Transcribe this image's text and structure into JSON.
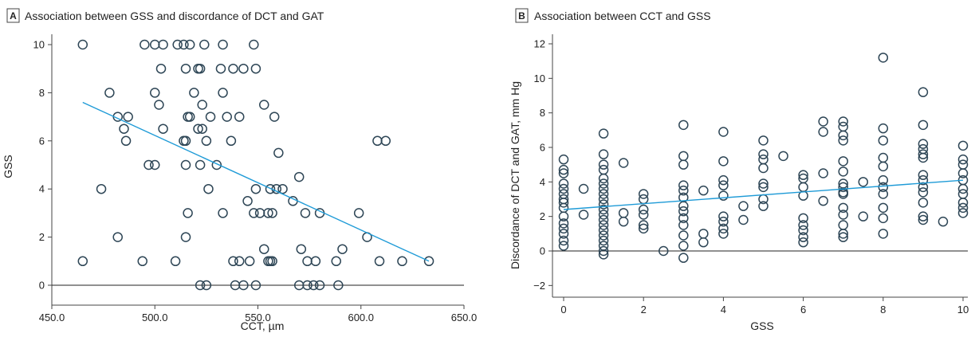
{
  "chart_data": [
    {
      "type": "scatter",
      "panel": "A",
      "title": "Association between GSS and discordance of DCT and GAT",
      "xlabel": "CCT, µm",
      "ylabel": "GSS",
      "xlim": [
        450,
        650
      ],
      "ylim": [
        0,
        10
      ],
      "xticks": [
        450,
        500,
        550,
        600,
        650
      ],
      "xtick_labels": [
        "450.0",
        "500.0",
        "550.0",
        "600.0",
        "650.0"
      ],
      "yticks": [
        0,
        2,
        4,
        6,
        8,
        10
      ],
      "ytick_labels": [
        "0",
        "2",
        "4",
        "6",
        "8",
        "10"
      ],
      "grid": false,
      "points": [
        [
          465,
          10
        ],
        [
          495,
          10
        ],
        [
          500,
          10
        ],
        [
          504,
          10
        ],
        [
          511,
          10
        ],
        [
          514,
          10
        ],
        [
          517,
          10
        ],
        [
          524,
          10
        ],
        [
          533,
          10
        ],
        [
          548,
          10
        ],
        [
          503,
          9
        ],
        [
          515,
          9
        ],
        [
          521,
          9
        ],
        [
          522,
          9
        ],
        [
          532,
          9
        ],
        [
          538,
          9
        ],
        [
          543,
          9
        ],
        [
          549,
          9
        ],
        [
          478,
          8
        ],
        [
          500,
          8
        ],
        [
          519,
          8
        ],
        [
          533,
          8
        ],
        [
          482,
          7
        ],
        [
          487,
          7
        ],
        [
          516,
          7
        ],
        [
          517,
          7
        ],
        [
          527,
          7
        ],
        [
          535,
          7
        ],
        [
          541,
          7
        ],
        [
          558,
          7
        ],
        [
          485,
          6.5
        ],
        [
          504,
          6.5
        ],
        [
          521,
          6.5
        ],
        [
          523,
          6.5
        ],
        [
          502,
          7.5
        ],
        [
          523,
          7.5
        ],
        [
          553,
          7.5
        ],
        [
          486,
          6
        ],
        [
          514,
          6
        ],
        [
          515,
          6
        ],
        [
          525,
          6
        ],
        [
          537,
          6
        ],
        [
          608,
          6
        ],
        [
          612,
          6
        ],
        [
          560,
          5.5
        ],
        [
          497,
          5
        ],
        [
          500,
          5
        ],
        [
          515,
          5
        ],
        [
          522,
          5
        ],
        [
          530,
          5
        ],
        [
          570,
          4.5
        ],
        [
          474,
          4
        ],
        [
          526,
          4
        ],
        [
          549,
          4
        ],
        [
          556,
          4
        ],
        [
          559,
          4
        ],
        [
          562,
          4
        ],
        [
          545,
          3.5
        ],
        [
          567,
          3.5
        ],
        [
          516,
          3
        ],
        [
          533,
          3
        ],
        [
          548,
          3
        ],
        [
          551,
          3
        ],
        [
          555,
          3
        ],
        [
          557,
          3
        ],
        [
          573,
          3
        ],
        [
          580,
          3
        ],
        [
          599,
          3
        ],
        [
          482,
          2
        ],
        [
          515,
          2
        ],
        [
          603,
          2
        ],
        [
          553,
          1.5
        ],
        [
          571,
          1.5
        ],
        [
          591,
          1.5
        ],
        [
          465,
          1
        ],
        [
          494,
          1
        ],
        [
          510,
          1
        ],
        [
          538,
          1
        ],
        [
          541,
          1
        ],
        [
          546,
          1
        ],
        [
          555,
          1
        ],
        [
          556,
          1
        ],
        [
          557,
          1
        ],
        [
          574,
          1
        ],
        [
          578,
          1
        ],
        [
          588,
          1
        ],
        [
          609,
          1
        ],
        [
          620,
          1
        ],
        [
          633,
          1
        ],
        [
          522,
          0
        ],
        [
          525,
          0
        ],
        [
          539,
          0
        ],
        [
          543,
          0
        ],
        [
          549,
          0
        ],
        [
          570,
          0
        ],
        [
          574,
          0
        ],
        [
          577,
          0
        ],
        [
          580,
          0
        ],
        [
          589,
          0
        ]
      ],
      "trendline": {
        "x": [
          465,
          633
        ],
        "y": [
          7.6,
          1.0
        ]
      }
    },
    {
      "type": "scatter",
      "panel": "B",
      "title": "Association between CCT and GSS",
      "xlabel": "GSS",
      "ylabel": "Discordance of DCT and GAT, mm Hg",
      "xlim": [
        -0.3,
        10
      ],
      "ylim": [
        -2.8,
        12
      ],
      "xticks": [
        0,
        2,
        4,
        6,
        8,
        10
      ],
      "xtick_labels": [
        "0",
        "2",
        "4",
        "6",
        "8",
        "10"
      ],
      "yticks": [
        -2,
        0,
        2,
        4,
        6,
        8,
        10,
        12
      ],
      "ytick_labels": [
        "−2",
        "0",
        "2",
        "4",
        "6",
        "8",
        "10",
        "12"
      ],
      "grid": false,
      "points": [
        [
          0,
          5.3
        ],
        [
          0,
          4.7
        ],
        [
          0,
          4.5
        ],
        [
          0,
          3.9
        ],
        [
          0,
          3.6
        ],
        [
          0,
          3.3
        ],
        [
          0,
          3.0
        ],
        [
          0,
          2.8
        ],
        [
          0,
          2.5
        ],
        [
          0,
          2.0
        ],
        [
          0,
          1.6
        ],
        [
          0,
          1.3
        ],
        [
          0,
          1.0
        ],
        [
          0,
          0.6
        ],
        [
          0,
          0.3
        ],
        [
          0.5,
          3.6
        ],
        [
          0.5,
          2.1
        ],
        [
          1,
          6.8
        ],
        [
          1,
          5.6
        ],
        [
          1,
          5.0
        ],
        [
          1,
          4.7
        ],
        [
          1,
          4.2
        ],
        [
          1,
          3.9
        ],
        [
          1,
          3.6
        ],
        [
          1,
          3.3
        ],
        [
          1,
          3.0
        ],
        [
          1,
          2.7
        ],
        [
          1,
          2.4
        ],
        [
          1,
          2.1
        ],
        [
          1,
          1.8
        ],
        [
          1,
          1.5
        ],
        [
          1,
          1.2
        ],
        [
          1,
          0.9
        ],
        [
          1,
          0.6
        ],
        [
          1,
          0.3
        ],
        [
          1,
          0.0
        ],
        [
          1,
          -0.2
        ],
        [
          1.5,
          5.1
        ],
        [
          1.5,
          2.2
        ],
        [
          1.5,
          1.7
        ],
        [
          2,
          3.3
        ],
        [
          2,
          3.0
        ],
        [
          2,
          2.4
        ],
        [
          2,
          2.1
        ],
        [
          2,
          1.5
        ],
        [
          2,
          1.3
        ],
        [
          2.5,
          0.0
        ],
        [
          3,
          7.3
        ],
        [
          3,
          5.5
        ],
        [
          3,
          5.0
        ],
        [
          3,
          3.8
        ],
        [
          3,
          3.5
        ],
        [
          3,
          3.1
        ],
        [
          3,
          2.6
        ],
        [
          3,
          2.3
        ],
        [
          3,
          1.9
        ],
        [
          3,
          1.5
        ],
        [
          3,
          0.9
        ],
        [
          3,
          0.3
        ],
        [
          3,
          -0.4
        ],
        [
          3.5,
          3.5
        ],
        [
          3.5,
          1.0
        ],
        [
          3.5,
          0.5
        ],
        [
          4,
          6.9
        ],
        [
          4,
          5.2
        ],
        [
          4,
          4.1
        ],
        [
          4,
          3.8
        ],
        [
          4,
          3.2
        ],
        [
          4,
          2.0
        ],
        [
          4,
          1.7
        ],
        [
          4,
          1.3
        ],
        [
          4,
          1.0
        ],
        [
          4.5,
          2.6
        ],
        [
          4.5,
          1.8
        ],
        [
          5,
          6.4
        ],
        [
          5,
          5.6
        ],
        [
          5,
          5.3
        ],
        [
          5,
          4.8
        ],
        [
          5,
          3.9
        ],
        [
          5,
          3.7
        ],
        [
          5,
          3.0
        ],
        [
          5,
          2.6
        ],
        [
          5.5,
          5.5
        ],
        [
          6,
          4.4
        ],
        [
          6,
          4.2
        ],
        [
          6,
          3.7
        ],
        [
          6,
          3.2
        ],
        [
          6,
          1.9
        ],
        [
          6,
          1.5
        ],
        [
          6,
          1.2
        ],
        [
          6,
          0.8
        ],
        [
          6,
          0.5
        ],
        [
          6.5,
          7.5
        ],
        [
          6.5,
          6.9
        ],
        [
          6.5,
          4.5
        ],
        [
          6.5,
          2.9
        ],
        [
          7,
          7.5
        ],
        [
          7,
          7.2
        ],
        [
          7,
          6.7
        ],
        [
          7,
          6.4
        ],
        [
          7,
          5.2
        ],
        [
          7,
          4.6
        ],
        [
          7,
          3.9
        ],
        [
          7,
          3.7
        ],
        [
          7,
          3.4
        ],
        [
          7,
          3.3
        ],
        [
          7,
          2.5
        ],
        [
          7,
          2.1
        ],
        [
          7,
          1.5
        ],
        [
          7,
          1.0
        ],
        [
          7,
          0.8
        ],
        [
          7.5,
          4.0
        ],
        [
          7.5,
          2.0
        ],
        [
          8,
          11.2
        ],
        [
          8,
          7.1
        ],
        [
          8,
          6.4
        ],
        [
          8,
          5.4
        ],
        [
          8,
          4.9
        ],
        [
          8,
          4.1
        ],
        [
          8,
          3.7
        ],
        [
          8,
          3.3
        ],
        [
          8,
          2.5
        ],
        [
          8,
          1.9
        ],
        [
          8,
          1.0
        ],
        [
          9,
          9.2
        ],
        [
          9,
          7.3
        ],
        [
          9,
          6.2
        ],
        [
          9,
          5.9
        ],
        [
          9,
          5.6
        ],
        [
          9,
          5.4
        ],
        [
          9,
          4.4
        ],
        [
          9,
          4.1
        ],
        [
          9,
          3.7
        ],
        [
          9,
          3.4
        ],
        [
          9,
          2.8
        ],
        [
          9,
          2.0
        ],
        [
          9,
          1.8
        ],
        [
          9.5,
          1.7
        ],
        [
          10,
          6.1
        ],
        [
          10,
          5.3
        ],
        [
          10,
          5.0
        ],
        [
          10,
          4.5
        ],
        [
          10,
          4.1
        ],
        [
          10,
          3.6
        ],
        [
          10,
          3.3
        ],
        [
          10,
          2.8
        ],
        [
          10,
          2.5
        ],
        [
          10,
          2.2
        ]
      ],
      "trendline": {
        "x": [
          0,
          10
        ],
        "y": [
          2.4,
          4.1
        ]
      }
    }
  ]
}
